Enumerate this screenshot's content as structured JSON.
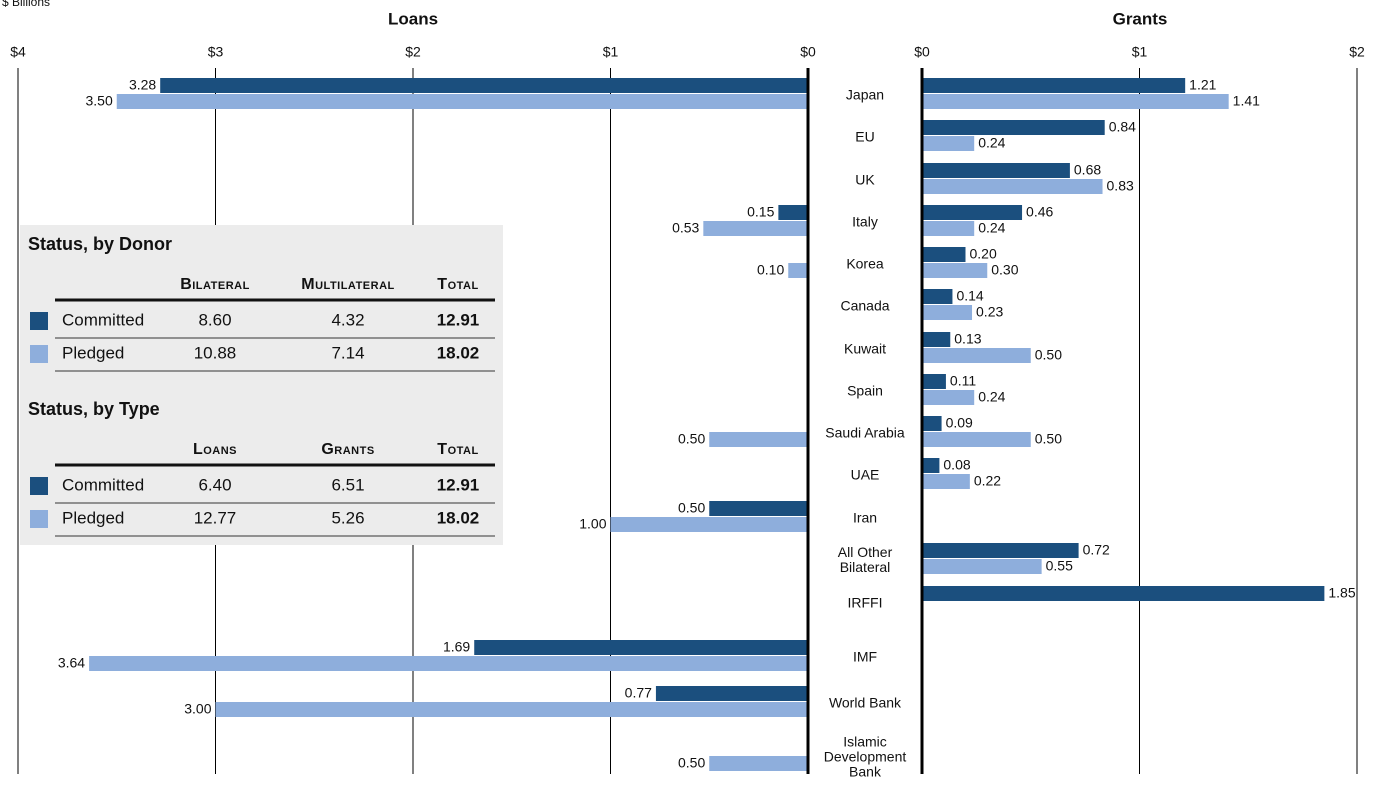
{
  "unit_label": "$ Billions",
  "chart_data": [
    {
      "type": "bar",
      "orientation": "horizontal",
      "direction": "reversed",
      "title": "Loans",
      "categories": [
        "Japan",
        "EU",
        "UK",
        "Italy",
        "Korea",
        "Canada",
        "Kuwait",
        "Spain",
        "Saudi Arabia",
        "UAE",
        "Iran",
        "All Other Bilateral",
        "IRFFI",
        "IMF",
        "World Bank",
        "Islamic Development Bank"
      ],
      "xlim": [
        0,
        4
      ],
      "xticks": [
        {
          "value": 0,
          "label": "$0"
        },
        {
          "value": 1,
          "label": "$1"
        },
        {
          "value": 2,
          "label": "$2"
        },
        {
          "value": 3,
          "label": "$3"
        },
        {
          "value": 4,
          "label": "$4"
        }
      ],
      "grid": true,
      "series": [
        {
          "name": "Committed",
          "color": "#1b4f7e",
          "values": [
            3.28,
            null,
            null,
            0.15,
            null,
            null,
            null,
            null,
            null,
            null,
            0.5,
            null,
            null,
            1.69,
            0.77,
            null
          ],
          "value_labels": [
            "3.28",
            null,
            null,
            "0.15",
            null,
            null,
            null,
            null,
            null,
            null,
            "0.50",
            null,
            null,
            "1.69",
            "0.77",
            null
          ]
        },
        {
          "name": "Pledged",
          "color": "#8eaedc",
          "values": [
            3.5,
            null,
            null,
            0.53,
            0.1,
            null,
            null,
            null,
            0.5,
            null,
            1.0,
            null,
            null,
            3.64,
            3.0,
            0.5
          ],
          "value_labels": [
            "3.50",
            null,
            null,
            "0.53",
            "0.10",
            null,
            null,
            null,
            "0.50",
            null,
            "1.00",
            null,
            null,
            "3.64",
            "3.00",
            "0.50"
          ]
        }
      ]
    },
    {
      "type": "bar",
      "orientation": "horizontal",
      "title": "Grants",
      "xlim": [
        0,
        2
      ],
      "xticks": [
        {
          "value": 0,
          "label": "$0"
        },
        {
          "value": 1,
          "label": "$1"
        },
        {
          "value": 2,
          "label": "$2"
        }
      ],
      "grid": true,
      "series": [
        {
          "name": "Committed",
          "color": "#1b4f7e",
          "values": [
            1.21,
            0.84,
            0.68,
            0.46,
            0.2,
            0.14,
            0.13,
            0.11,
            0.09,
            0.08,
            null,
            0.72,
            1.85,
            null,
            null,
            null
          ],
          "value_labels": [
            "1.21",
            "0.84",
            "0.68",
            "0.46",
            "0.20",
            "0.14",
            "0.13",
            "0.11",
            "0.09",
            "0.08",
            null,
            "0.72",
            "1.85",
            null,
            null,
            null
          ]
        },
        {
          "name": "Pledged",
          "color": "#8eaedc",
          "values": [
            1.41,
            0.24,
            0.83,
            0.24,
            0.3,
            0.23,
            0.5,
            0.24,
            0.5,
            0.22,
            null,
            0.55,
            null,
            null,
            null,
            null
          ],
          "value_labels": [
            "1.41",
            "0.24",
            "0.83",
            "0.24",
            "0.30",
            "0.23",
            "0.50",
            "0.24",
            "0.50",
            "0.22",
            null,
            "0.55",
            null,
            null,
            null,
            null
          ]
        }
      ]
    }
  ],
  "tables": [
    {
      "title": "Status, by Donor",
      "columns": [
        "Bilateral",
        "Multilateral",
        "Total"
      ],
      "rows": [
        [
          "8.60",
          "4.32",
          "12.91"
        ],
        [
          "10.88",
          "7.14",
          "18.02"
        ]
      ]
    },
    {
      "title": "Status, by Type",
      "columns": [
        "Loans",
        "Grants",
        "Total"
      ],
      "rows": [
        [
          "6.40",
          "6.51",
          "12.91"
        ],
        [
          "12.77",
          "5.26",
          "18.02"
        ]
      ]
    }
  ]
}
